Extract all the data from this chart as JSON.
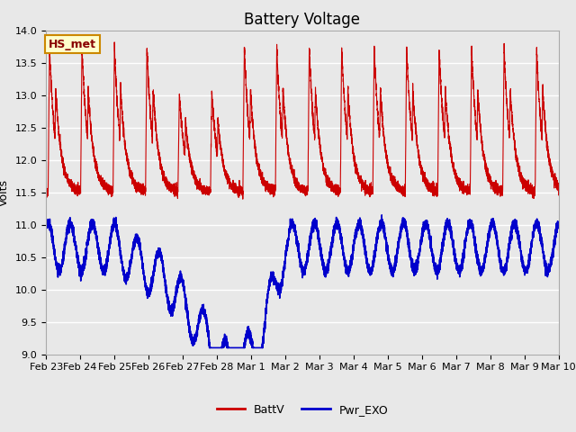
{
  "title": "Battery Voltage",
  "ylabel": "Volts",
  "ylim": [
    9.0,
    14.0
  ],
  "yticks": [
    9.0,
    9.5,
    10.0,
    10.5,
    11.0,
    11.5,
    12.0,
    12.5,
    13.0,
    13.5,
    14.0
  ],
  "background_color": "#e8e8e8",
  "plot_bg_color": "#e8e8e8",
  "grid_color": "#ffffff",
  "batt_color": "#cc0000",
  "exo_color": "#0000cc",
  "legend_label_batt": "BattV",
  "legend_label_exo": "Pwr_EXO",
  "annotation_text": "HS_met",
  "annotation_bg": "#ffffcc",
  "annotation_border": "#cc8800",
  "x_tick_labels": [
    "Feb 23",
    "Feb 24",
    "Feb 25",
    "Feb 26",
    "Feb 27",
    "Feb 28",
    "Mar 1",
    "Mar 2",
    "Mar 3",
    "Mar 4",
    "Mar 5",
    "Mar 6",
    "Mar 7",
    "Mar 8",
    "Mar 9",
    "Mar 10"
  ],
  "n_days": 16,
  "title_fontsize": 12,
  "axis_fontsize": 9,
  "tick_fontsize": 8
}
